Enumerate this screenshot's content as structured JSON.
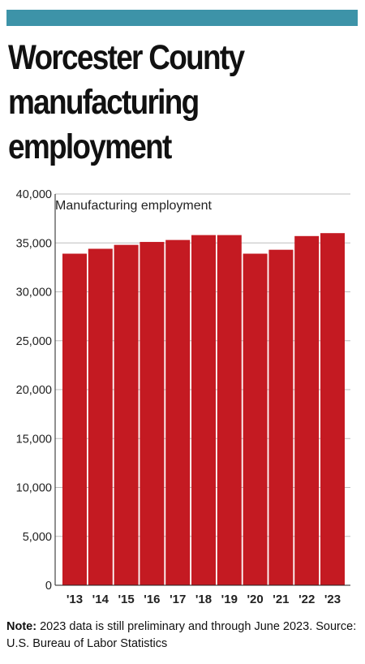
{
  "header": {
    "title_lines": [
      "Worcester County",
      "manufacturing",
      "employment"
    ]
  },
  "colors": {
    "accent_bar": "#3d93a8",
    "bar": "#c41a22"
  },
  "chart_data": {
    "type": "bar",
    "title": "Worcester County manufacturing employment",
    "series_label": "Manufacturing employment",
    "categories": [
      "'13",
      "'14",
      "'15",
      "'16",
      "'17",
      "'18",
      "'19",
      "'20",
      "'21",
      "'22",
      "'23"
    ],
    "values": [
      33900,
      34400,
      34800,
      35100,
      35300,
      35800,
      35800,
      33900,
      34300,
      35700,
      36000
    ],
    "ylim": [
      0,
      40000
    ],
    "yticks": [
      0,
      5000,
      10000,
      15000,
      20000,
      25000,
      30000,
      35000,
      40000
    ],
    "ytick_labels": [
      "0",
      "5,000",
      "10,000",
      "15,000",
      "20,000",
      "25,000",
      "30,000",
      "35,000",
      "40,000"
    ],
    "grid": true
  },
  "footer": {
    "note_label": "Note:",
    "note_text": " 2023 data is still preliminary and through June 2023. Source: U.S. Bureau of Labor Statistics"
  }
}
